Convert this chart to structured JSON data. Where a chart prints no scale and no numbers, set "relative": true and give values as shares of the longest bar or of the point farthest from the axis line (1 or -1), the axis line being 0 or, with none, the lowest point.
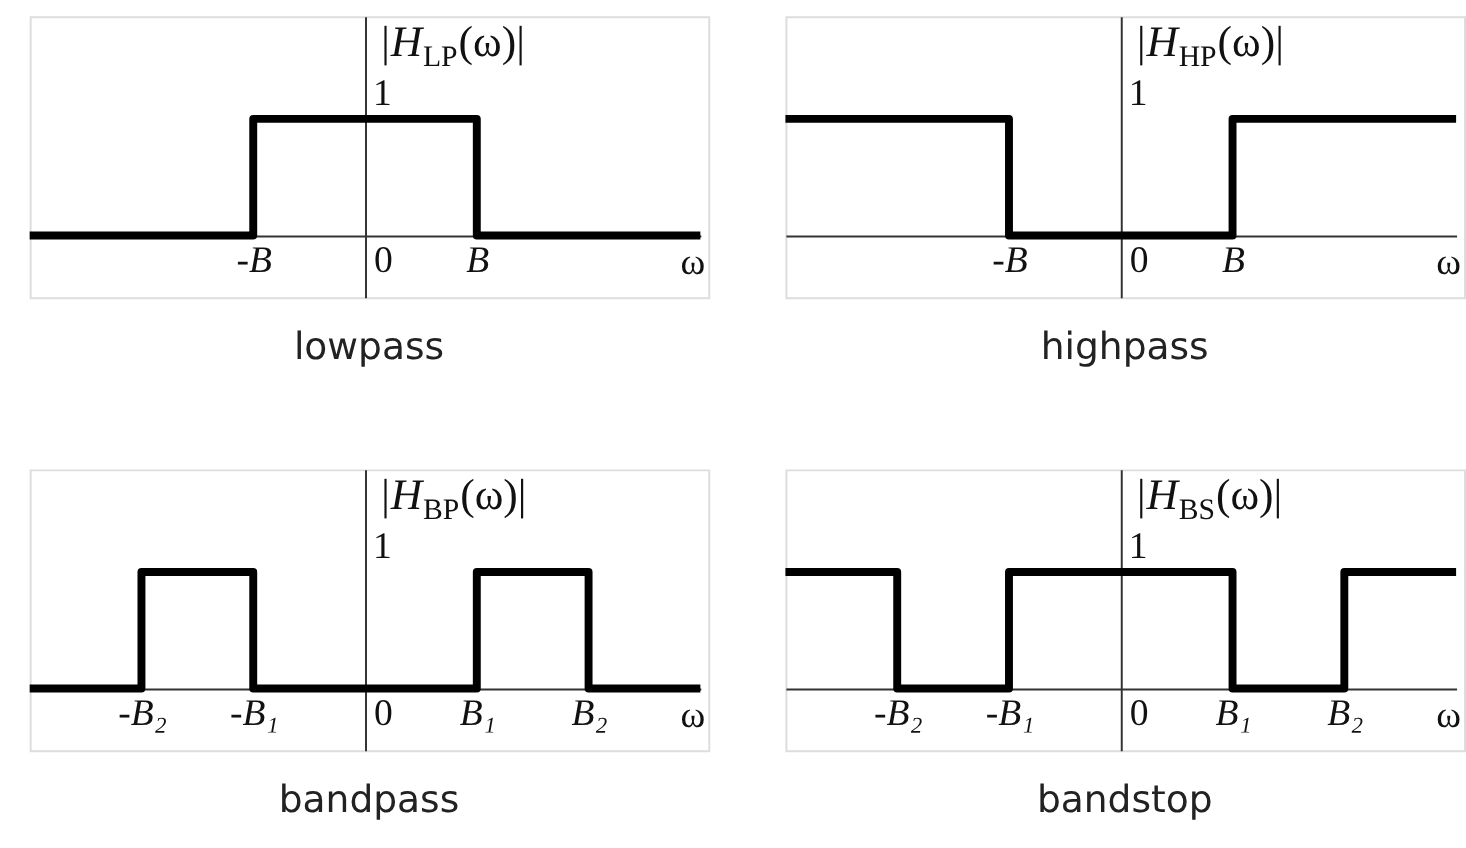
{
  "chart_data": [
    {
      "type": "step",
      "title": "lowpass",
      "xlabel": "ω",
      "ylabel": "|H$_{LP}$(ω)|",
      "relative": true,
      "categories": [
        null,
        null,
        "-B",
        "0",
        "B",
        null,
        null
      ],
      "values": [
        0,
        0,
        1,
        1,
        0,
        0,
        0
      ],
      "color": "#000000",
      "annotations": [
        "1"
      ]
    },
    {
      "type": "step",
      "title": "highpass",
      "xlabel": "ω",
      "ylabel": "|H$_{HP}$(ω)|",
      "relative": true,
      "categories": [
        null,
        null,
        "-B",
        "0",
        "B",
        null,
        null
      ],
      "values": [
        1,
        1,
        0,
        0,
        1,
        1,
        1
      ],
      "color": "#000000",
      "annotations": [
        "1"
      ]
    },
    {
      "type": "step",
      "title": "bandpass",
      "xlabel": "ω",
      "ylabel": "|H$_{BP}$(ω)|",
      "relative": true,
      "categories": [
        null,
        "-B₂",
        "-B₁",
        "0",
        "B₁",
        "B₂",
        null
      ],
      "values": [
        0,
        1,
        0,
        0,
        1,
        0,
        0
      ],
      "color": "#000000",
      "annotations": [
        "1"
      ]
    },
    {
      "type": "step",
      "title": "bandstop",
      "xlabel": "ω",
      "ylabel": "|H$_{BS}$(ω)|",
      "relative": true,
      "categories": [
        null,
        "-B₂",
        "-B₁",
        "0",
        "B₁",
        "B₂",
        null
      ],
      "values": [
        1,
        0,
        1,
        1,
        0,
        1,
        1
      ],
      "color": "#000000",
      "annotations": [
        "1"
      ]
    }
  ]
}
